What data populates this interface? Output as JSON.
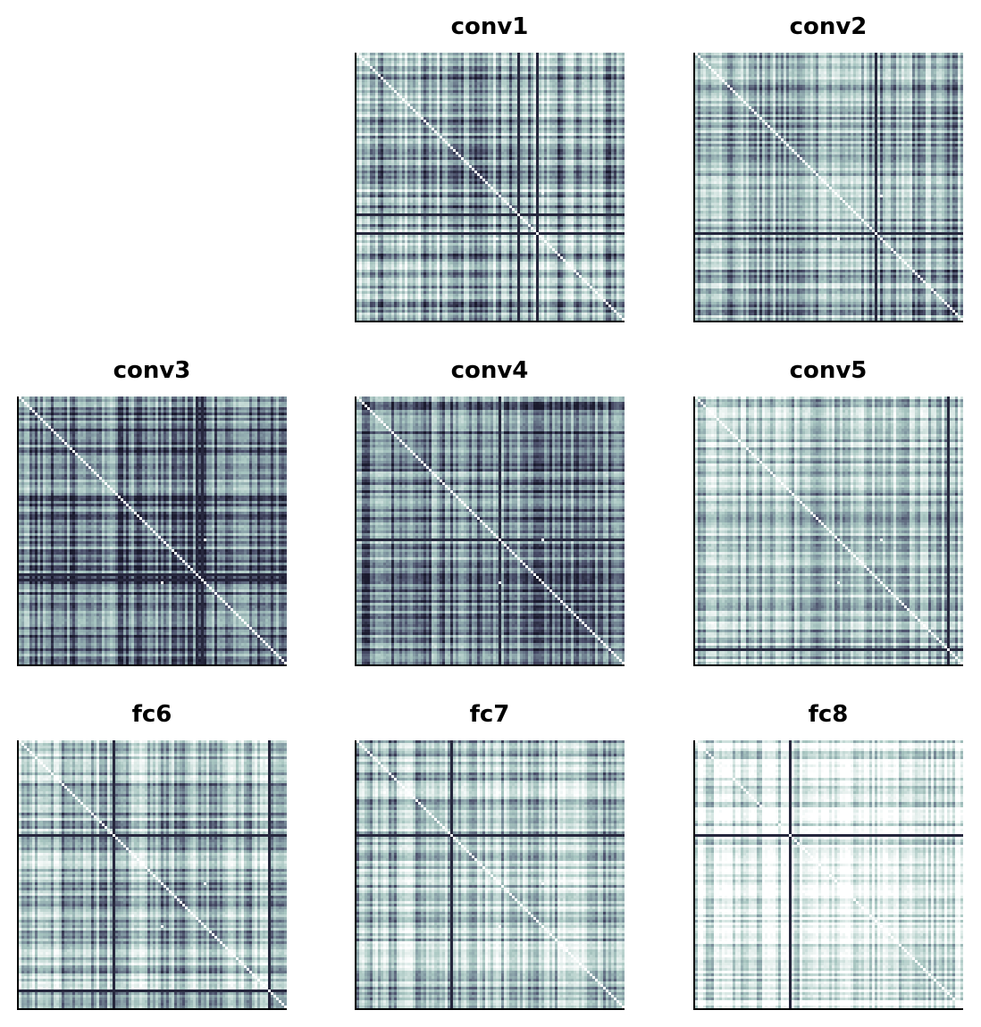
{
  "chart_data": {
    "type": "heatmap",
    "grid": "off",
    "colormap": [
      "#1a1a2e",
      "#4a4e6a",
      "#7f95a0",
      "#a8c6c1",
      "#dbe9e6",
      "#ffffff"
    ],
    "size": 100,
    "panels": [
      {
        "title": "conv1",
        "contrast": 0.55,
        "mean": 0.5,
        "dark_lines": [
          60,
          67
        ],
        "light_dots": [
          [
            52,
            69
          ],
          [
            69,
            52
          ]
        ]
      },
      {
        "title": "conv2",
        "contrast": 0.5,
        "mean": 0.48,
        "dark_lines": [
          67
        ],
        "light_dots": [
          [
            53,
            69
          ],
          [
            69,
            53
          ]
        ]
      },
      {
        "title": "conv3",
        "contrast": 0.5,
        "mean": 0.32,
        "dark_lines": [
          66,
          68
        ],
        "light_dots": [
          [
            53,
            69
          ],
          [
            69,
            53
          ]
        ]
      },
      {
        "title": "conv4",
        "contrast": 0.5,
        "mean": 0.36,
        "dark_lines": [
          53
        ],
        "light_dots": [
          [
            53,
            69
          ],
          [
            69,
            53
          ]
        ]
      },
      {
        "title": "conv5",
        "contrast": 0.45,
        "mean": 0.62,
        "dark_lines": [
          94
        ],
        "light_dots": [
          [
            53,
            69
          ],
          [
            69,
            53
          ]
        ]
      },
      {
        "title": "fc6",
        "contrast": 0.5,
        "mean": 0.56,
        "dark_lines": [
          35,
          93
        ],
        "light_dots": [
          [
            53,
            69
          ],
          [
            69,
            53
          ]
        ]
      },
      {
        "title": "fc7",
        "contrast": 0.5,
        "mean": 0.58,
        "dark_lines": [
          35
        ],
        "light_dots": [
          [
            53,
            69
          ],
          [
            69,
            53
          ]
        ]
      },
      {
        "title": "fc8",
        "contrast": 0.45,
        "mean": 0.78,
        "dark_lines": [
          35
        ],
        "light_dots": []
      }
    ]
  }
}
